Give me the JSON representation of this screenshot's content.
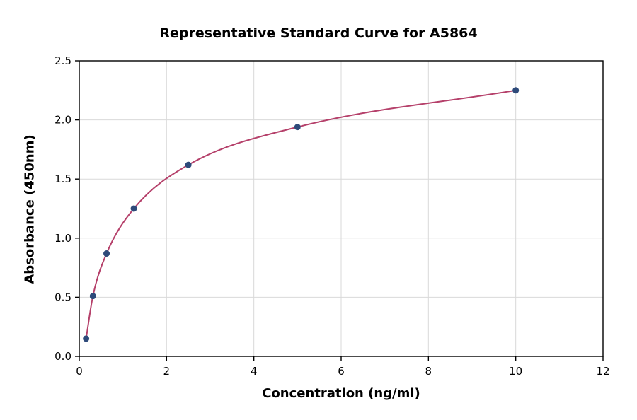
{
  "chart_data": {
    "type": "line",
    "title": "Representative Standard Curve for A5864",
    "xlabel": "Concentration (ng/ml)",
    "ylabel": "Absorbance (450nm)",
    "x": [
      0.156,
      0.3125,
      0.625,
      1.25,
      2.5,
      5,
      10
    ],
    "y": [
      0.15,
      0.51,
      0.87,
      1.25,
      1.62,
      1.94,
      2.25
    ],
    "xlim": [
      0,
      12
    ],
    "ylim": [
      0,
      2.5
    ],
    "xticks": [
      0,
      2,
      4,
      6,
      8,
      10,
      12
    ],
    "yticks": [
      0.0,
      0.5,
      1.0,
      1.5,
      2.0,
      2.5
    ],
    "grid": true,
    "legend": "none",
    "line_color": "#b5406a",
    "marker_color": "#2e4a7a",
    "grid_color": "#d9d9d9",
    "axis_color": "#000000"
  }
}
